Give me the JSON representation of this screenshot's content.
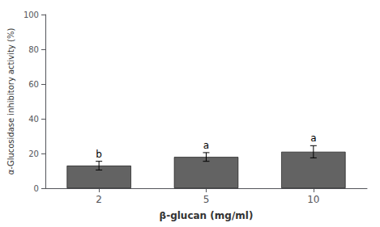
{
  "chart_data": {
    "type": "bar",
    "categories": [
      "2",
      "5",
      "10"
    ],
    "values": [
      13.0,
      18.0,
      21.0
    ],
    "errors": [
      2.5,
      2.5,
      3.5
    ],
    "annotations": [
      "b",
      "a",
      "a"
    ],
    "color": "#636363",
    "xlabel": "β-glucan (mg/ml)",
    "ylabel": "α-Glucosidase inhibitory activity (%)",
    "ylim": [
      0,
      100
    ],
    "yticks": [
      0,
      20,
      40,
      60,
      80,
      100
    ],
    "grid": false
  }
}
